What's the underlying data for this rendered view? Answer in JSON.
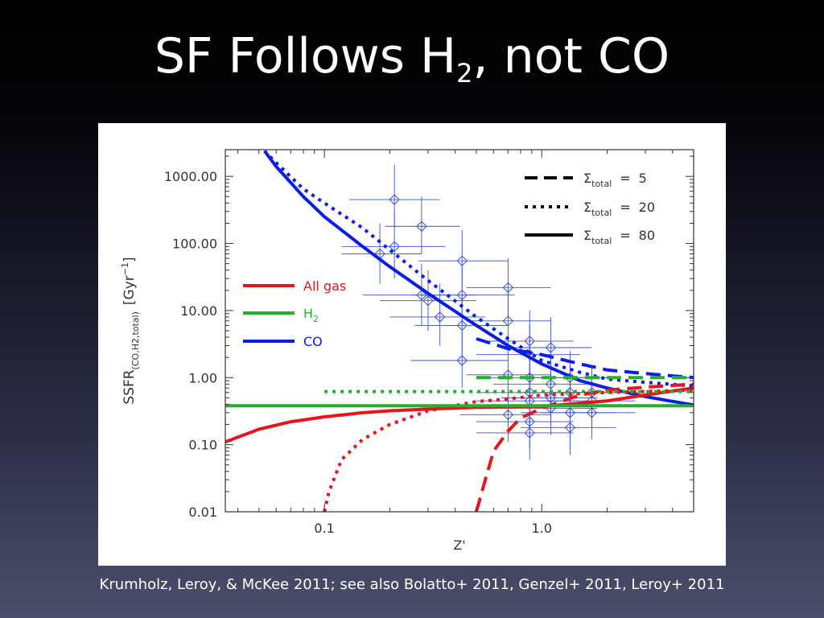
{
  "slide": {
    "title_main": "SF Follows H",
    "title_sub": "2",
    "title_rest": ", not CO",
    "citation": "Krumholz, Leroy, & McKee 2011; see also Bolatto+ 2011, Genzel+ 2011, Leroy+ 2011"
  },
  "chart_data": {
    "type": "line",
    "title": "",
    "xlabel": "Z'",
    "ylabel_main": "SSFR",
    "ylabel_sub": "(CO,H2,total)",
    "ylabel_unit": "[Gyr",
    "ylabel_exp": "−1",
    "ylabel_close": "]",
    "xscale": "log",
    "yscale": "log",
    "xlim": [
      0.035,
      5.0
    ],
    "ylim": [
      0.01,
      2500
    ],
    "x_ticks": [
      {
        "value": 0.1,
        "label": "0.1"
      },
      {
        "value": 1.0,
        "label": "1.0"
      }
    ],
    "y_ticks": [
      {
        "value": 0.01,
        "label": "0.01"
      },
      {
        "value": 0.1,
        "label": "0.10"
      },
      {
        "value": 1,
        "label": "1.00"
      },
      {
        "value": 10,
        "label": "10.00"
      },
      {
        "value": 100,
        "label": "100.00"
      },
      {
        "value": 1000,
        "label": "1000.00"
      }
    ],
    "grid": false,
    "color_legend": {
      "position": "middle-left",
      "entries": [
        {
          "label": "All gas",
          "color": "#e8141c"
        },
        {
          "label": "H",
          "sub": "2",
          "color": "#22b12c"
        },
        {
          "label": "CO",
          "color": "#0a1ee6"
        }
      ]
    },
    "style_legend": {
      "position": "top-right",
      "entries": [
        {
          "symbol": "Σ",
          "sub": "total",
          "eq": "=",
          "value": "5",
          "dash": "dashed"
        },
        {
          "symbol": "Σ",
          "sub": "total",
          "eq": "=",
          "value": "20",
          "dash": "dotted"
        },
        {
          "symbol": "Σ",
          "sub": "total",
          "eq": "=",
          "value": "80",
          "dash": "solid"
        }
      ]
    },
    "series": [
      {
        "quantity": "CO",
        "sigma": 80,
        "color": "#0a1ee6",
        "dash": "solid",
        "points": [
          [
            0.053,
            2400
          ],
          [
            0.06,
            1400
          ],
          [
            0.08,
            500
          ],
          [
            0.1,
            250
          ],
          [
            0.15,
            90
          ],
          [
            0.2,
            45
          ],
          [
            0.3,
            18
          ],
          [
            0.5,
            6
          ],
          [
            0.7,
            3
          ],
          [
            1.0,
            1.6
          ],
          [
            1.5,
            0.9
          ],
          [
            2.0,
            0.7
          ],
          [
            3.0,
            0.52
          ],
          [
            5.0,
            0.39
          ]
        ]
      },
      {
        "quantity": "CO",
        "sigma": 20,
        "color": "#0a1ee6",
        "dash": "dotted",
        "points": [
          [
            0.053,
            2400
          ],
          [
            0.06,
            1600
          ],
          [
            0.08,
            650
          ],
          [
            0.1,
            400
          ],
          [
            0.15,
            170
          ],
          [
            0.2,
            80
          ],
          [
            0.3,
            28
          ],
          [
            0.5,
            8
          ],
          [
            0.7,
            3.8
          ],
          [
            1.0,
            1.8
          ],
          [
            1.5,
            1.2
          ],
          [
            2.0,
            0.95
          ],
          [
            3.0,
            0.85
          ],
          [
            5.0,
            0.75
          ]
        ]
      },
      {
        "quantity": "CO",
        "sigma": 5,
        "color": "#0a1ee6",
        "dash": "dashed",
        "points": [
          [
            0.5,
            3.8
          ],
          [
            0.7,
            2.7
          ],
          [
            1.0,
            2.2
          ],
          [
            1.5,
            1.6
          ],
          [
            2.0,
            1.3
          ],
          [
            3.0,
            1.15
          ],
          [
            5.0,
            1.0
          ]
        ]
      },
      {
        "quantity": "All gas",
        "sigma": 80,
        "color": "#e8141c",
        "dash": "solid",
        "points": [
          [
            0.035,
            0.11
          ],
          [
            0.05,
            0.17
          ],
          [
            0.07,
            0.22
          ],
          [
            0.1,
            0.26
          ],
          [
            0.15,
            0.3
          ],
          [
            0.2,
            0.32
          ],
          [
            0.3,
            0.34
          ],
          [
            0.5,
            0.36
          ],
          [
            1.0,
            0.37
          ],
          [
            2.0,
            0.45
          ],
          [
            3.0,
            0.55
          ],
          [
            5.0,
            0.7
          ]
        ]
      },
      {
        "quantity": "All gas",
        "sigma": 20,
        "color": "#e8141c",
        "dash": "dotted",
        "points": [
          [
            0.1,
            0.01
          ],
          [
            0.105,
            0.02
          ],
          [
            0.12,
            0.06
          ],
          [
            0.15,
            0.12
          ],
          [
            0.2,
            0.2
          ],
          [
            0.3,
            0.32
          ],
          [
            0.5,
            0.44
          ],
          [
            0.7,
            0.48
          ],
          [
            1.0,
            0.55
          ],
          [
            2.0,
            0.6
          ],
          [
            5.0,
            0.65
          ]
        ]
      },
      {
        "quantity": "All gas",
        "sigma": 5,
        "color": "#e8141c",
        "dash": "dashed",
        "points": [
          [
            0.5,
            0.01
          ],
          [
            0.55,
            0.03
          ],
          [
            0.6,
            0.08
          ],
          [
            0.7,
            0.16
          ],
          [
            0.8,
            0.25
          ],
          [
            1.0,
            0.35
          ],
          [
            1.5,
            0.55
          ],
          [
            2.0,
            0.65
          ],
          [
            3.0,
            0.72
          ],
          [
            5.0,
            0.8
          ]
        ]
      },
      {
        "quantity": "H2",
        "sigma": 80,
        "color": "#22b12c",
        "dash": "solid",
        "points": [
          [
            0.035,
            0.38
          ],
          [
            5.0,
            0.38
          ]
        ]
      },
      {
        "quantity": "H2",
        "sigma": 20,
        "color": "#22b12c",
        "dash": "dotted",
        "points": [
          [
            0.1,
            0.62
          ],
          [
            5.0,
            0.62
          ]
        ]
      },
      {
        "quantity": "H2",
        "sigma": 5,
        "color": "#22b12c",
        "dash": "dashed",
        "points": [
          [
            0.5,
            1.0
          ],
          [
            5.0,
            1.0
          ]
        ]
      }
    ],
    "observations": {
      "color": "#3b4fd1",
      "marker": "diamond",
      "points": [
        {
          "x": 0.21,
          "y": 450,
          "xlo": 0.13,
          "xhi": 0.34,
          "ylo": 180,
          "yhi": 1500
        },
        {
          "x": 0.28,
          "y": 180,
          "xlo": 0.19,
          "xhi": 0.42,
          "ylo": 70,
          "yhi": 500
        },
        {
          "x": 0.21,
          "y": 90,
          "xlo": 0.12,
          "xhi": 0.36,
          "ylo": 30,
          "yhi": 300
        },
        {
          "x": 0.18,
          "y": 70,
          "xlo": 0.12,
          "xhi": 0.28,
          "ylo": 25,
          "yhi": 200
        },
        {
          "x": 0.43,
          "y": 55,
          "xlo": 0.27,
          "xhi": 0.7,
          "ylo": 20,
          "yhi": 160
        },
        {
          "x": 0.28,
          "y": 17,
          "xlo": 0.15,
          "xhi": 0.5,
          "ylo": 6,
          "yhi": 50
        },
        {
          "x": 0.43,
          "y": 17,
          "xlo": 0.25,
          "xhi": 0.75,
          "ylo": 6,
          "yhi": 50
        },
        {
          "x": 0.3,
          "y": 14,
          "xlo": 0.18,
          "xhi": 0.5,
          "ylo": 5,
          "yhi": 40
        },
        {
          "x": 0.7,
          "y": 22,
          "xlo": 0.45,
          "xhi": 1.1,
          "ylo": 8,
          "yhi": 60
        },
        {
          "x": 0.34,
          "y": 8,
          "xlo": 0.2,
          "xhi": 0.55,
          "ylo": 3,
          "yhi": 25
        },
        {
          "x": 0.43,
          "y": 6,
          "xlo": 0.26,
          "xhi": 0.7,
          "ylo": 2.2,
          "yhi": 16
        },
        {
          "x": 0.7,
          "y": 7,
          "xlo": 0.45,
          "xhi": 1.1,
          "ylo": 2.5,
          "yhi": 20
        },
        {
          "x": 0.43,
          "y": 1.8,
          "xlo": 0.25,
          "xhi": 0.7,
          "ylo": 0.7,
          "yhi": 5
        },
        {
          "x": 0.88,
          "y": 3.5,
          "xlo": 0.55,
          "xhi": 1.4,
          "ylo": 1.3,
          "yhi": 10
        },
        {
          "x": 1.1,
          "y": 2.8,
          "xlo": 0.7,
          "xhi": 1.7,
          "ylo": 1.1,
          "yhi": 8
        },
        {
          "x": 0.88,
          "y": 2.2,
          "xlo": 0.5,
          "xhi": 1.5,
          "ylo": 0.8,
          "yhi": 6
        },
        {
          "x": 0.7,
          "y": 1.1,
          "xlo": 0.45,
          "xhi": 1.1,
          "ylo": 0.45,
          "yhi": 3
        },
        {
          "x": 0.88,
          "y": 1.0,
          "xlo": 0.5,
          "xhi": 1.6,
          "ylo": 0.4,
          "yhi": 2.5
        },
        {
          "x": 1.35,
          "y": 1.0,
          "xlo": 0.8,
          "xhi": 2.3,
          "ylo": 0.4,
          "yhi": 2.5
        },
        {
          "x": 1.1,
          "y": 0.8,
          "xlo": 0.6,
          "xhi": 1.8,
          "ylo": 0.3,
          "yhi": 2
        },
        {
          "x": 0.88,
          "y": 0.6,
          "xlo": 0.5,
          "xhi": 1.5,
          "ylo": 0.25,
          "yhi": 1.5
        },
        {
          "x": 1.35,
          "y": 0.6,
          "xlo": 0.8,
          "xhi": 2.2,
          "ylo": 0.25,
          "yhi": 1.5
        },
        {
          "x": 1.7,
          "y": 0.6,
          "xlo": 1.0,
          "xhi": 2.8,
          "ylo": 0.25,
          "yhi": 1.5
        },
        {
          "x": 1.1,
          "y": 0.5,
          "xlo": 0.65,
          "xhi": 1.8,
          "ylo": 0.2,
          "yhi": 1.2
        },
        {
          "x": 1.7,
          "y": 0.45,
          "xlo": 1.0,
          "xhi": 2.7,
          "ylo": 0.18,
          "yhi": 1.1
        },
        {
          "x": 0.88,
          "y": 0.45,
          "xlo": 0.5,
          "xhi": 1.5,
          "ylo": 0.18,
          "yhi": 1.1
        },
        {
          "x": 1.1,
          "y": 0.35,
          "xlo": 0.65,
          "xhi": 1.8,
          "ylo": 0.14,
          "yhi": 0.9
        },
        {
          "x": 1.35,
          "y": 0.3,
          "xlo": 0.8,
          "xhi": 2.2,
          "ylo": 0.12,
          "yhi": 0.8
        },
        {
          "x": 1.7,
          "y": 0.3,
          "xlo": 1.0,
          "xhi": 2.7,
          "ylo": 0.12,
          "yhi": 0.8
        },
        {
          "x": 0.7,
          "y": 0.28,
          "xlo": 0.42,
          "xhi": 1.1,
          "ylo": 0.11,
          "yhi": 0.7
        },
        {
          "x": 0.88,
          "y": 0.22,
          "xlo": 0.5,
          "xhi": 1.4,
          "ylo": 0.09,
          "yhi": 0.55
        },
        {
          "x": 1.35,
          "y": 0.18,
          "xlo": 0.8,
          "xhi": 2.2,
          "ylo": 0.07,
          "yhi": 0.45
        },
        {
          "x": 0.88,
          "y": 0.15,
          "xlo": 0.5,
          "xhi": 1.4,
          "ylo": 0.06,
          "yhi": 0.35
        }
      ]
    }
  }
}
